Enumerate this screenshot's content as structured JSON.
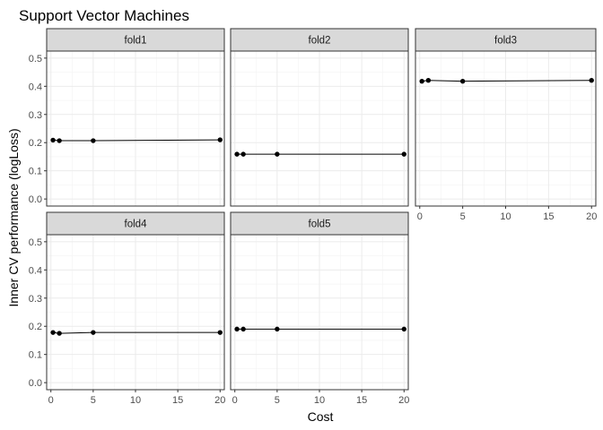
{
  "chart_data": {
    "type": "line",
    "title": "Support Vector Machines",
    "xlabel": "Cost",
    "ylabel": "Inner CV performance (logLoss)",
    "xlim": [
      -0.5,
      20.5
    ],
    "ylim": [
      -0.025,
      0.525
    ],
    "x_ticks": [
      0,
      5,
      10,
      15,
      20
    ],
    "y_ticks": [
      0.0,
      0.1,
      0.2,
      0.3,
      0.4,
      0.5
    ],
    "x_tick_labels": [
      "0",
      "5",
      "10",
      "15",
      "20"
    ],
    "y_tick_labels": [
      "0.0",
      "0.1",
      "0.2",
      "0.3",
      "0.4",
      "0.5"
    ],
    "grid": true,
    "panels": [
      {
        "name": "fold1",
        "x": [
          0.25,
          1,
          5,
          20
        ],
        "y": [
          0.209,
          0.207,
          0.207,
          0.21
        ]
      },
      {
        "name": "fold2",
        "x": [
          0.25,
          1,
          5,
          20
        ],
        "y": [
          0.159,
          0.159,
          0.159,
          0.159
        ]
      },
      {
        "name": "fold3",
        "x": [
          0.25,
          1,
          5,
          20
        ],
        "y": [
          0.418,
          0.421,
          0.418,
          0.421
        ]
      },
      {
        "name": "fold4",
        "x": [
          0.25,
          1,
          5,
          20
        ],
        "y": [
          0.178,
          0.175,
          0.178,
          0.178
        ]
      },
      {
        "name": "fold5",
        "x": [
          0.25,
          1,
          5,
          20
        ],
        "y": [
          0.19,
          0.19,
          0.19,
          0.19
        ]
      }
    ]
  }
}
